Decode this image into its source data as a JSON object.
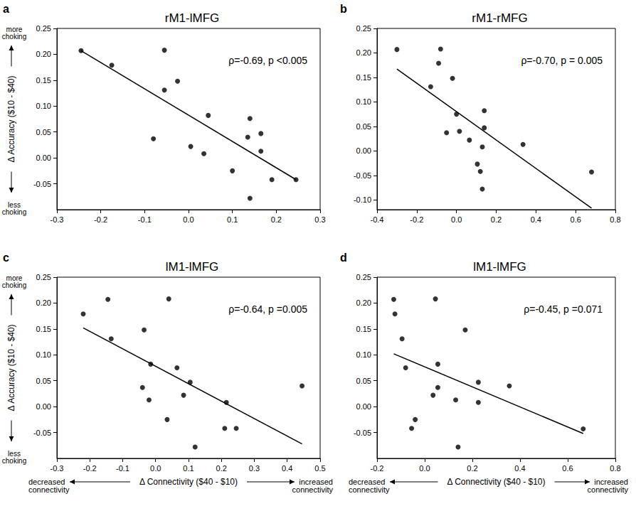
{
  "chart_data": [
    {
      "type": "scatter",
      "panel": "a",
      "title": "rM1-lMFG",
      "annotation": "ρ=-0.69, p <0.005",
      "color": "#000000",
      "grid": false,
      "x": [
        -0.245,
        -0.175,
        -0.08,
        -0.055,
        -0.055,
        -0.025,
        0.005,
        0.035,
        0.045,
        0.1,
        0.135,
        0.14,
        0.14,
        0.165,
        0.165,
        0.19,
        0.245
      ],
      "values": [
        0.207,
        0.179,
        0.037,
        0.208,
        0.131,
        0.148,
        0.022,
        0.008,
        0.082,
        -0.025,
        0.04,
        0.076,
        -0.078,
        0.047,
        0.013,
        -0.042,
        -0.042
      ],
      "fit": {
        "x": [
          -0.245,
          0.245
        ],
        "values": [
          0.207,
          -0.042
        ]
      },
      "xlim": [
        -0.3,
        0.3
      ],
      "xticks": [
        -0.3,
        -0.2,
        -0.1,
        {
          "value": 0,
          "label": "0.0"
        },
        0.1,
        0.2,
        0.3
      ],
      "ylim": [
        -0.1,
        0.25
      ],
      "yticks": [
        -0.05,
        {
          "value": 0,
          "label": "0.00"
        },
        0.05,
        {
          "value": 0.1,
          "label": "0.10"
        },
        0.15,
        {
          "value": 0.2,
          "label": "0.20"
        },
        0.25
      ],
      "ylabel": "Δ Accuracy ($10 - $40)",
      "ylabel_ends": [
        "less\nchoking",
        "more\nchoking"
      ]
    },
    {
      "type": "scatter",
      "panel": "b",
      "title": "rM1-rMFG",
      "annotation": "ρ=-0.70, p = 0.005",
      "color": "#000000",
      "grid": false,
      "x": [
        -0.3,
        -0.08,
        -0.09,
        -0.13,
        -0.02,
        0.0,
        -0.05,
        0.015,
        0.065,
        0.14,
        0.14,
        0.105,
        0.12,
        0.13,
        0.13,
        0.335,
        0.68
      ],
      "values": [
        0.207,
        0.208,
        0.179,
        0.131,
        0.148,
        0.075,
        0.037,
        0.04,
        0.022,
        0.082,
        0.047,
        -0.027,
        -0.042,
        0.008,
        -0.078,
        0.013,
        -0.043
      ],
      "fit": {
        "x": [
          -0.3,
          0.68
        ],
        "values": [
          0.167,
          -0.117
        ]
      },
      "xlim": [
        -0.4,
        0.8
      ],
      "xticks": [
        -0.4,
        -0.2,
        {
          "value": 0,
          "label": "0.0"
        },
        0.2,
        0.4,
        0.6,
        0.8
      ],
      "ylim": [
        -0.12,
        0.25
      ],
      "yticks": [
        {
          "value": -0.1,
          "label": "-0.10"
        },
        -0.05,
        {
          "value": 0,
          "label": "0.00"
        },
        0.05,
        {
          "value": 0.1,
          "label": "0.10"
        },
        0.15,
        {
          "value": 0.2,
          "label": "0.20"
        },
        0.25
      ]
    },
    {
      "type": "scatter",
      "panel": "c",
      "title": "lM1-lMFG",
      "annotation": "ρ=-0.64, p =0.005",
      "color": "#000000",
      "grid": false,
      "x": [
        -0.22,
        -0.145,
        -0.135,
        -0.035,
        0.04,
        -0.04,
        -0.015,
        -0.02,
        0.035,
        0.065,
        0.085,
        0.105,
        0.12,
        0.215,
        0.21,
        0.245,
        0.445
      ],
      "values": [
        0.179,
        0.207,
        0.131,
        0.148,
        0.208,
        0.037,
        0.082,
        0.013,
        -0.025,
        0.075,
        0.022,
        0.047,
        -0.078,
        0.008,
        -0.042,
        -0.042,
        0.04
      ],
      "fit": {
        "x": [
          -0.22,
          0.445
        ],
        "values": [
          0.152,
          -0.072
        ]
      },
      "xlim": [
        -0.3,
        0.5
      ],
      "xticks": [
        -0.3,
        -0.2,
        -0.1,
        {
          "value": 0,
          "label": "0.0"
        },
        0.1,
        0.2,
        0.3,
        0.4,
        0.5
      ],
      "ylim": [
        -0.1,
        0.25
      ],
      "yticks": [
        -0.05,
        {
          "value": 0,
          "label": "0.00"
        },
        0.05,
        {
          "value": 0.1,
          "label": "0.10"
        },
        0.15,
        {
          "value": 0.2,
          "label": "0.20"
        },
        0.25
      ],
      "ylabel": "Δ Accuracy ($10 - $40)",
      "ylabel_ends": [
        "less\nchoking",
        "more\nchoking"
      ],
      "xlabel": "Δ Connectivity ($40 - $10)",
      "xlabel_ends": [
        "decreased\nconnectivity",
        "increased\nconnectivity"
      ]
    },
    {
      "type": "scatter",
      "panel": "d",
      "title": "lM1-lMFG",
      "annotation": "ρ=-0.45, p =0.071",
      "color": "#000000",
      "grid": false,
      "x": [
        -0.13,
        -0.125,
        -0.095,
        -0.08,
        0.045,
        0.055,
        0.055,
        0.17,
        0.035,
        -0.04,
        -0.055,
        0.13,
        0.14,
        0.225,
        0.225,
        0.355,
        0.665
      ],
      "values": [
        0.207,
        0.179,
        0.131,
        0.075,
        0.208,
        0.082,
        0.037,
        0.148,
        0.022,
        -0.025,
        -0.042,
        0.013,
        -0.078,
        0.047,
        0.008,
        0.04,
        -0.043
      ],
      "fit": {
        "x": [
          -0.13,
          0.665
        ],
        "values": [
          0.102,
          -0.052
        ]
      },
      "xlim": [
        -0.2,
        0.8
      ],
      "xticks": [
        -0.2,
        {
          "value": 0,
          "label": "0.0"
        },
        0.2,
        0.4,
        0.6,
        0.8
      ],
      "ylim": [
        -0.1,
        0.25
      ],
      "yticks": [
        -0.05,
        {
          "value": 0,
          "label": "0.00"
        },
        0.05,
        {
          "value": 0.1,
          "label": "0.10"
        },
        0.15,
        {
          "value": 0.2,
          "label": "0.20"
        },
        0.25
      ],
      "xlabel": "Δ Connectivity ($40 - $10)",
      "xlabel_ends": [
        "decreased\nconnectivity",
        "increased\nconnectivity"
      ]
    }
  ]
}
